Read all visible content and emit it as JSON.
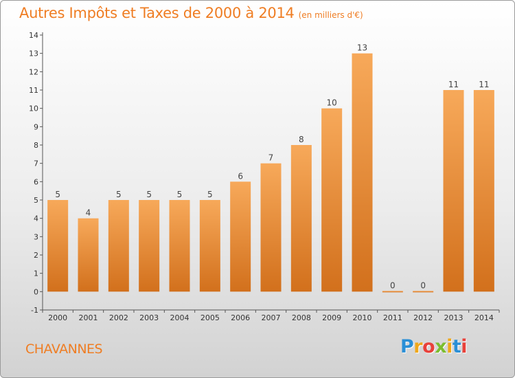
{
  "title": "Autres Impôts et Taxes de 2000 à 2014",
  "unit": "(en milliers d'€)",
  "commune": "CHAVANNES",
  "logo": {
    "letters": [
      "P",
      "r",
      "o",
      "x",
      "i",
      "t",
      "i"
    ],
    "colors": [
      "#2a8fd6",
      "#f0a81b",
      "#e8413a",
      "#7cbd2f",
      "#f0a81b",
      "#2a8fd6",
      "#e8413a"
    ]
  },
  "colors": {
    "bar_top": "#f7a95a",
    "bar_bottom": "#d2701c",
    "accent": "#ef7d23"
  },
  "chart_data": {
    "type": "bar",
    "title": "Autres Impôts et Taxes de 2000 à 2014",
    "subtitle": "(en milliers d'€)",
    "categories": [
      "2000",
      "2001",
      "2002",
      "2003",
      "2004",
      "2005",
      "2006",
      "2007",
      "2008",
      "2009",
      "2010",
      "2011",
      "2012",
      "2013",
      "2014"
    ],
    "values": [
      5,
      4,
      5,
      5,
      5,
      5,
      6,
      7,
      8,
      10,
      13,
      0,
      0,
      11,
      11
    ],
    "yticks": [
      "-1",
      "0",
      "1",
      "2",
      "3",
      "4",
      "5",
      "6",
      "7",
      "8",
      "9",
      "10",
      "11",
      "12",
      "13",
      "14"
    ],
    "ylim": [
      -1,
      14
    ],
    "xlabel": "",
    "ylabel": "",
    "grid": false,
    "legend": "none"
  }
}
